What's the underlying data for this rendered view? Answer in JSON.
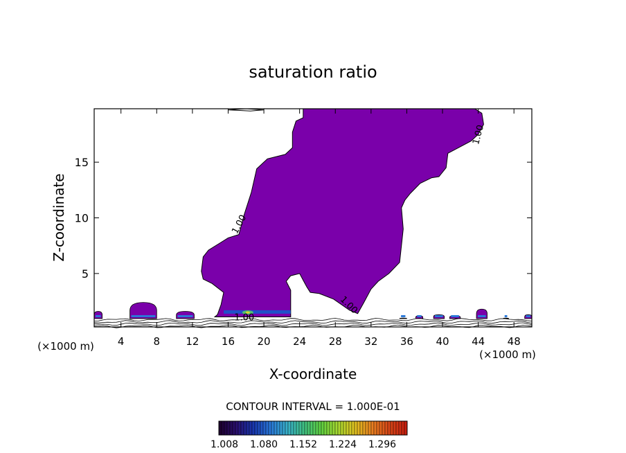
{
  "chart_data": {
    "type": "contour",
    "title": "saturation ratio",
    "xlabel": "X-coordinate",
    "ylabel": "Z-coordinate",
    "x_unit_left": "(×1000 m)",
    "x_unit_right": "(×1000 m)",
    "xlim": [
      1,
      50
    ],
    "ylim": [
      0.2,
      19.8
    ],
    "xticks": [
      4,
      8,
      12,
      16,
      20,
      24,
      28,
      32,
      36,
      40,
      44,
      48
    ],
    "yticks": [
      5,
      10,
      15
    ],
    "contour_level": "1.00",
    "contour_labels": [
      {
        "text": "1.00",
        "x": 17.5,
        "y": 9.3,
        "angle": -62
      },
      {
        "text": "1.00",
        "x": 29.3,
        "y": 2.0,
        "angle": 45
      },
      {
        "text": "1.00",
        "x": 44.3,
        "y": 17.4,
        "angle": -75
      },
      {
        "text": "1.00",
        "x": 17.8,
        "y": 0.8,
        "angle": 0
      }
    ],
    "plume_boundary": [
      [
        14.8,
        1.3
      ],
      [
        15.2,
        2.2
      ],
      [
        15.5,
        3.3
      ],
      [
        14.2,
        4.1
      ],
      [
        13.2,
        4.5
      ],
      [
        13.0,
        5.2
      ],
      [
        13.2,
        6.5
      ],
      [
        13.8,
        7.1
      ],
      [
        15.0,
        7.7
      ],
      [
        16.0,
        8.2
      ],
      [
        17.2,
        8.5
      ],
      [
        17.8,
        10.3
      ],
      [
        18.6,
        12.3
      ],
      [
        19.2,
        14.4
      ],
      [
        20.4,
        15.3
      ],
      [
        22.4,
        15.7
      ],
      [
        23.2,
        16.3
      ],
      [
        23.2,
        17.7
      ],
      [
        23.6,
        18.7
      ],
      [
        24.4,
        19.0
      ],
      [
        24.4,
        19.8
      ],
      [
        43.6,
        19.8
      ],
      [
        44.4,
        19.4
      ],
      [
        44.6,
        18.4
      ],
      [
        44.0,
        17.5
      ],
      [
        43.2,
        16.9
      ],
      [
        40.6,
        15.8
      ],
      [
        40.4,
        14.5
      ],
      [
        39.6,
        13.7
      ],
      [
        38.8,
        13.6
      ],
      [
        37.5,
        13.1
      ],
      [
        36.4,
        12.2
      ],
      [
        35.8,
        11.6
      ],
      [
        35.4,
        10.9
      ],
      [
        35.6,
        9.0
      ],
      [
        35.2,
        6.0
      ],
      [
        34.0,
        5.0
      ],
      [
        32.8,
        4.3
      ],
      [
        32.0,
        3.6
      ],
      [
        31.2,
        2.4
      ],
      [
        30.5,
        1.4
      ],
      [
        29.6,
        1.7
      ],
      [
        27.8,
        2.7
      ],
      [
        26.2,
        3.2
      ],
      [
        25.2,
        3.3
      ],
      [
        24.8,
        3.8
      ],
      [
        24.4,
        4.4
      ],
      [
        24.0,
        5.0
      ],
      [
        23.0,
        4.8
      ],
      [
        22.5,
        4.3
      ],
      [
        23.0,
        3.5
      ],
      [
        23.0,
        1.1
      ],
      [
        20.0,
        1.1
      ],
      [
        17.0,
        1.1
      ],
      [
        14.5,
        1.1
      ]
    ],
    "hole": [
      [
        16.0,
        19.7
      ],
      [
        18.5,
        19.6
      ],
      [
        20.0,
        19.7
      ],
      [
        18.0,
        19.8
      ]
    ],
    "small_patches": [
      {
        "x": [
          1.0,
          1.9
        ],
        "top": 1.6
      },
      {
        "x": [
          5.0,
          8.0
        ],
        "top": 2.4
      },
      {
        "x": [
          10.2,
          12.2
        ],
        "top": 1.6
      },
      {
        "x": [
          35.2,
          36.0
        ],
        "top": 1.0
      },
      {
        "x": [
          37.0,
          37.8
        ],
        "top": 1.2
      },
      {
        "x": [
          39.0,
          40.2
        ],
        "top": 1.3
      },
      {
        "x": [
          40.8,
          42.0
        ],
        "top": 1.2
      },
      {
        "x": [
          43.8,
          45.0
        ],
        "top": 1.8
      },
      {
        "x": [
          46.8,
          47.4
        ],
        "top": 1.0
      },
      {
        "x": [
          49.2,
          50.0
        ],
        "top": 1.3
      }
    ],
    "contour_interval_text": "CONTOUR INTERVAL = 1.000E-01",
    "colorbar": {
      "labels": [
        "1.008",
        "1.080",
        "1.152",
        "1.224",
        "1.296"
      ],
      "colors": [
        "#1e0030",
        "#2a1070",
        "#1838b0",
        "#2a78d8",
        "#38b0c8",
        "#40c080",
        "#60d040",
        "#a8d830",
        "#e0c020",
        "#e88020",
        "#d84818",
        "#c82010"
      ]
    },
    "plume_color": "#7a00aa"
  }
}
